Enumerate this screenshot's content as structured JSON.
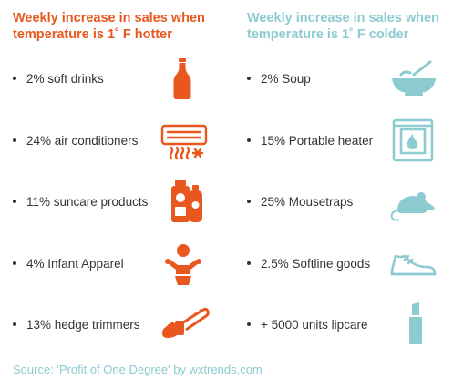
{
  "hot": {
    "title_line1": "Weekly increase in sales when",
    "title_line2": "temperature is 1˚ F hotter",
    "color": "#e8571e",
    "items": [
      {
        "label": "2% soft drinks",
        "icon": "soda-bottle-icon"
      },
      {
        "label": "24% air conditioners",
        "icon": "air-conditioner-icon"
      },
      {
        "label": "11% suncare products",
        "icon": "sunscreen-icon"
      },
      {
        "label": "4% Infant Apparel",
        "icon": "baby-icon"
      },
      {
        "label": "13% hedge trimmers",
        "icon": "chainsaw-icon"
      }
    ]
  },
  "cold": {
    "title_line1": "Weekly increase in sales when",
    "title_line2": "temperature is 1˚ F colder",
    "color": "#8ccbd0",
    "items": [
      {
        "label": "2% Soup",
        "icon": "soup-bowl-icon"
      },
      {
        "label": "15% Portable heater",
        "icon": "heater-icon"
      },
      {
        "label": "25% Mousetraps",
        "icon": "mouse-icon"
      },
      {
        "label": "2.5% Softline goods",
        "icon": "sneaker-icon"
      },
      {
        "label": "+ 5000 units lipcare",
        "icon": "lipstick-icon"
      }
    ]
  },
  "source": "Source: 'Profit of One Degree' by wxtrends.com"
}
